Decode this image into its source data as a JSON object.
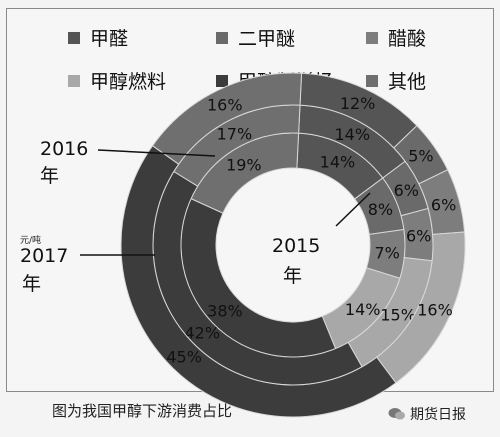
{
  "legend": [
    {
      "label": "甲醛",
      "color": "#555555"
    },
    {
      "label": "二甲醚",
      "color": "#6a6a6a"
    },
    {
      "label": "醋酸",
      "color": "#7d7d7d"
    },
    {
      "label": "甲醇燃料",
      "color": "#a8a8a8"
    },
    {
      "label": "甲醇制烯烃",
      "color": "#3c3c3c"
    },
    {
      "label": "其他",
      "color": "#6f6f6f"
    }
  ],
  "chart_data": {
    "type": "pie",
    "categories": [
      "甲醛",
      "二甲醚",
      "醋酸",
      "甲醇燃料",
      "甲醇制烯烃",
      "其他"
    ],
    "series": [
      {
        "name": "2015年",
        "values": [
          14,
          8,
          7,
          14,
          38,
          19
        ]
      },
      {
        "name": "2016年",
        "values": [
          14,
          6,
          6,
          15,
          42,
          17
        ]
      },
      {
        "name": "2017年",
        "values": [
          12,
          5,
          6,
          16,
          45,
          16
        ]
      }
    ],
    "unit_note": "元/吨"
  },
  "year_labels": {
    "inner": "2015",
    "middle": "2016",
    "outer": "2017",
    "suffix": "年"
  },
  "caption": "图为我国甲醇下游消费占比",
  "watermark": "期货日报"
}
